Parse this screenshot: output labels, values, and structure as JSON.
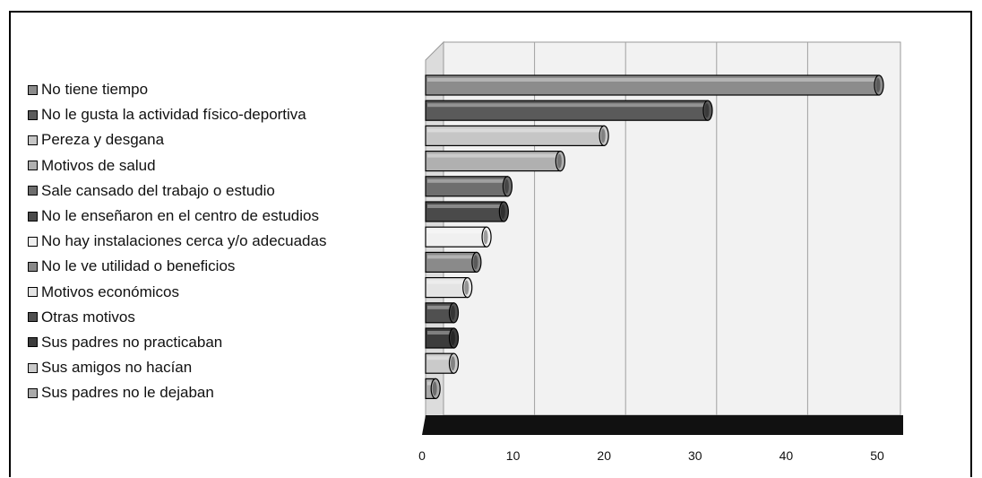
{
  "chart_data": {
    "type": "bar",
    "orientation": "horizontal",
    "categories": [
      "No tiene tiempo",
      "No le gusta la actividad físico-deportiva",
      "Pereza y desgana",
      "Motivos de salud",
      "Sale cansado del trabajo o estudio",
      "No le enseñaron en el centro de estudios",
      "No hay instalaciones cerca y/o adecuadas",
      "No le ve utilidad o beneficios",
      "Motivos económicos",
      "Otras motivos",
      "Sus padres no practicaban",
      "Sus amigos no hacían",
      "Sus padres no le dejaban"
    ],
    "values": [
      49.8,
      31,
      19.6,
      14.8,
      9,
      8.6,
      6.7,
      5.6,
      4.6,
      3.1,
      3.1,
      3.1,
      1.1
    ],
    "colors": [
      "#8c8c8c",
      "#5a5a5a",
      "#c6c6c6",
      "#b0b0b0",
      "#6e6e6e",
      "#4a4a4a",
      "#f0f0f0",
      "#8a8a8a",
      "#e4e4e4",
      "#505050",
      "#3c3c3c",
      "#cacaca",
      "#aaaaaa"
    ],
    "xlim": [
      0,
      50
    ],
    "xticks": [
      "0",
      "10",
      "20",
      "30",
      "40",
      "50"
    ],
    "grid": true,
    "legend_position": "left"
  }
}
